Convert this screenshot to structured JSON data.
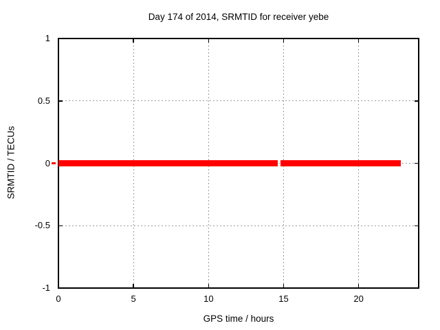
{
  "chart_data": {
    "type": "line",
    "title": "Day 174 of 2014, SRMTID for receiver yebe",
    "xlabel": "GPS time / hours",
    "ylabel": "SRMTID / TECUs",
    "xlim": [
      0,
      24
    ],
    "ylim": [
      -1,
      1
    ],
    "xtick_values": [
      0,
      5,
      10,
      15,
      20
    ],
    "xtick_labels": [
      "0",
      "5",
      "10",
      "15",
      "20"
    ],
    "ytick_values": [
      -1,
      -0.5,
      0,
      0.5,
      1
    ],
    "ytick_labels": [
      "-1",
      "-0.5",
      "0",
      "0.5",
      "1"
    ],
    "grid": true,
    "grid_style": "dotted",
    "legend_position": "none",
    "series": [
      {
        "name": "SRMTID",
        "color": "#ff0000",
        "style": "thick horizontal line at y=0 with data gap",
        "segments": [
          {
            "x_start": -0.45,
            "x_end": -0.2,
            "y": 0,
            "thickness_px": 3
          },
          {
            "x_start": 0,
            "x_end": 14.6,
            "y": 0,
            "thickness_px": 9
          },
          {
            "x_start": 14.8,
            "x_end": 22.8,
            "y": 0,
            "thickness_px": 9
          }
        ]
      }
    ]
  },
  "colors": {
    "line": "#ff0000",
    "grid": "#9b9b9b",
    "border": "#000000",
    "text": "#000000",
    "background": "#ffffff"
  }
}
